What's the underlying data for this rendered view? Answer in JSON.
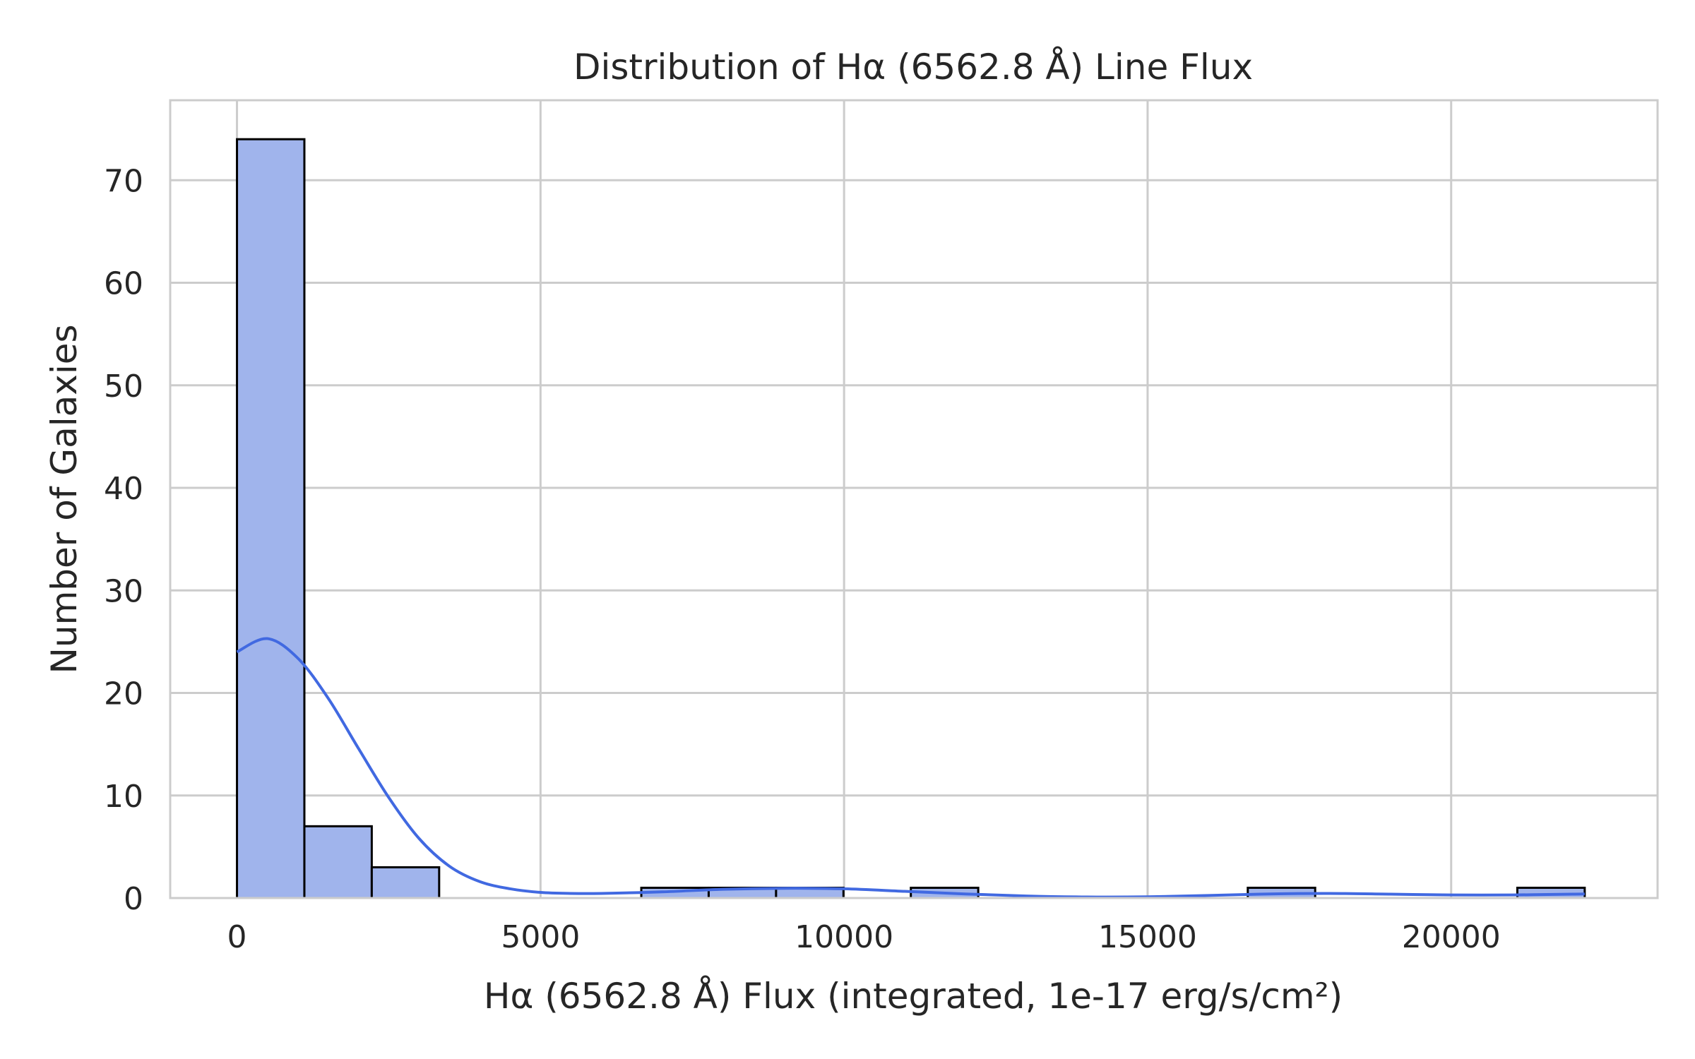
{
  "chart_data": {
    "type": "bar",
    "title": "Distribution of Hα (6562.8 Å) Line Flux",
    "xlabel": "Hα (6562.8 Å) Flux (integrated, 1e-17 erg/s/cm²)",
    "ylabel": "Number of Galaxies",
    "xlim": [
      -1100,
      23400
    ],
    "ylim": [
      0,
      77.8
    ],
    "xticks": [
      0,
      5000,
      10000,
      15000,
      20000
    ],
    "yticks": [
      0,
      10,
      20,
      30,
      40,
      50,
      60,
      70
    ],
    "bin_edges": [
      0,
      1110,
      2220,
      3330,
      4440,
      5550,
      6660,
      7770,
      8880,
      9990,
      11100,
      12210,
      13320,
      14430,
      15540,
      16650,
      17760,
      18870,
      19980,
      21090,
      22200
    ],
    "counts": [
      74,
      7,
      3,
      0,
      0,
      0,
      1,
      1,
      1,
      0,
      1,
      0,
      0,
      0,
      0,
      1,
      0,
      0,
      0,
      1
    ],
    "kde": {
      "x": [
        0,
        500,
        1000,
        1500,
        2000,
        2500,
        3000,
        3500,
        4000,
        4500,
        5000,
        5500,
        6000,
        7000,
        8000,
        9000,
        10000,
        11000,
        12000,
        13000,
        14000,
        15000,
        16000,
        17000,
        18000,
        19000,
        20000,
        21000,
        22000,
        22200
      ],
      "y": [
        24.0,
        25.3,
        23.4,
        19.5,
        14.6,
        9.8,
        5.8,
        3.1,
        1.6,
        0.9,
        0.55,
        0.45,
        0.45,
        0.6,
        0.85,
        0.95,
        0.9,
        0.65,
        0.4,
        0.2,
        0.1,
        0.12,
        0.25,
        0.4,
        0.45,
        0.38,
        0.3,
        0.3,
        0.38,
        0.4
      ]
    },
    "grid": true,
    "legend": "none",
    "colors": {
      "bar_fill": "#a0b4ec",
      "bar_edge": "#000000",
      "kde_line": "#4169e1",
      "grid": "#cccccc",
      "frame": "#cccccc",
      "text": "#262626"
    }
  }
}
